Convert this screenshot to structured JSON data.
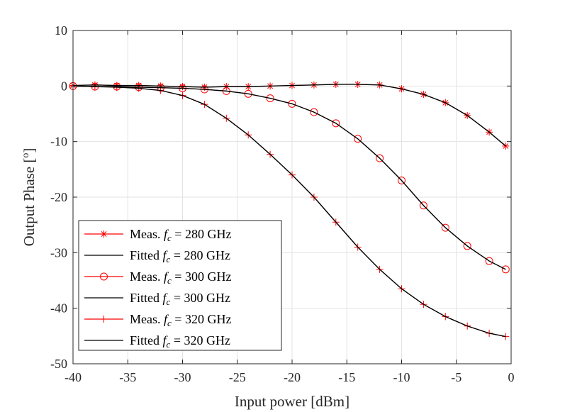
{
  "chart_data": {
    "type": "line",
    "title": "",
    "xlabel": "Input power [dBm]",
    "ylabel_main": "Output Phase [",
    "ylabel_sup": "o",
    "ylabel_end": "]",
    "xlim": [
      -40,
      0
    ],
    "ylim": [
      -50,
      10
    ],
    "xticks": [
      -40,
      -35,
      -30,
      -25,
      -20,
      -15,
      -10,
      -5,
      0
    ],
    "xtick_labels": [
      "-40",
      "-35",
      "-30",
      "-25",
      "-20",
      "-15",
      "-10",
      "-5",
      "0"
    ],
    "yticks": [
      10,
      0,
      -10,
      -20,
      -30,
      -40,
      -50
    ],
    "ytick_labels": [
      "10",
      "0",
      "-10",
      "-20",
      "-30",
      "-40",
      "-50"
    ],
    "grid": true,
    "legend_position": "bottom-left",
    "x": [
      -40,
      -38,
      -36,
      -34,
      -32,
      -30,
      -28,
      -26,
      -24,
      -22,
      -20,
      -18,
      -16,
      -14,
      -12,
      -10,
      -8,
      -6,
      -4,
      -2,
      -0.5
    ],
    "series": [
      {
        "name": "Meas. f_c = 280 GHz",
        "legend_prefix": "Meas.",
        "legend_var": "f",
        "legend_sub": "c",
        "legend_suffix": " = 280 GHz",
        "style": "marker",
        "marker": "asterisk",
        "color": "#ff0000",
        "values": [
          0.1,
          0.2,
          0.1,
          0.1,
          0.0,
          -0.1,
          -0.2,
          -0.1,
          -0.1,
          0.0,
          0.1,
          0.2,
          0.3,
          0.3,
          0.2,
          -0.5,
          -1.5,
          -3.0,
          -5.3,
          -8.3,
          -10.8
        ]
      },
      {
        "name": "Fitted f_c = 280 GHz",
        "legend_prefix": "Fitted",
        "legend_var": "f",
        "legend_sub": "c",
        "legend_suffix": " = 280 GHz",
        "style": "line",
        "color": "#000000",
        "values": [
          0.1,
          0.2,
          0.1,
          0.1,
          0.0,
          -0.1,
          -0.2,
          -0.1,
          -0.1,
          0.0,
          0.1,
          0.2,
          0.3,
          0.3,
          0.2,
          -0.5,
          -1.5,
          -3.0,
          -5.3,
          -8.3,
          -10.8
        ]
      },
      {
        "name": "Meas. f_c = 300 GHz",
        "legend_prefix": "Meas.",
        "legend_var": "f",
        "legend_sub": "c",
        "legend_suffix": " = 300 GHz",
        "style": "marker",
        "marker": "circle",
        "color": "#ff0000",
        "values": [
          0.0,
          -0.1,
          -0.1,
          -0.2,
          -0.3,
          -0.4,
          -0.6,
          -0.9,
          -1.4,
          -2.2,
          -3.2,
          -4.7,
          -6.7,
          -9.5,
          -13.0,
          -17.0,
          -21.5,
          -25.5,
          -28.8,
          -31.5,
          -33.0
        ]
      },
      {
        "name": "Fitted f_c = 300 GHz",
        "legend_prefix": "Fitted",
        "legend_var": "f",
        "legend_sub": "c",
        "legend_suffix": " = 300 GHz",
        "style": "line",
        "color": "#000000",
        "values": [
          0.0,
          -0.1,
          -0.1,
          -0.2,
          -0.3,
          -0.4,
          -0.6,
          -0.9,
          -1.4,
          -2.2,
          -3.2,
          -4.7,
          -6.7,
          -9.5,
          -13.0,
          -17.0,
          -21.5,
          -25.5,
          -28.8,
          -31.5,
          -33.0
        ]
      },
      {
        "name": "Meas. f_c = 320 GHz",
        "legend_prefix": "Meas.",
        "legend_var": "f",
        "legend_sub": "c",
        "legend_suffix": " = 320 GHz",
        "style": "marker",
        "marker": "plus",
        "color": "#ff0000",
        "values": [
          0.0,
          -0.1,
          -0.2,
          -0.4,
          -0.8,
          -1.7,
          -3.3,
          -5.8,
          -8.8,
          -12.3,
          -16.0,
          -20.0,
          -24.5,
          -29.0,
          -33.0,
          -36.5,
          -39.3,
          -41.5,
          -43.2,
          -44.5,
          -45.1
        ]
      },
      {
        "name": "Fitted f_c = 320 GHz",
        "legend_prefix": "Fitted",
        "legend_var": "f",
        "legend_sub": "c",
        "legend_suffix": " = 320 GHz",
        "style": "line",
        "color": "#000000",
        "values": [
          0.0,
          -0.1,
          -0.2,
          -0.4,
          -0.8,
          -1.7,
          -3.3,
          -5.8,
          -8.8,
          -12.3,
          -16.0,
          -20.0,
          -24.5,
          -29.0,
          -33.0,
          -36.5,
          -39.3,
          -41.5,
          -43.2,
          -44.5,
          -45.1
        ]
      }
    ]
  }
}
